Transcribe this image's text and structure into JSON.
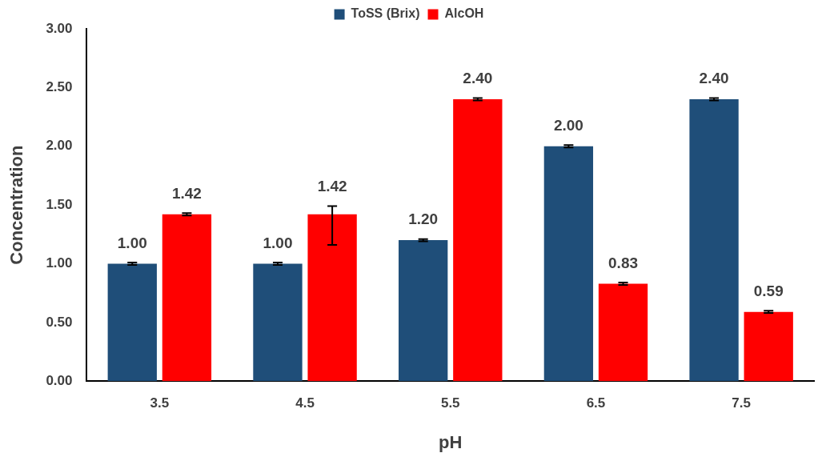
{
  "chart_data": {
    "type": "bar",
    "xlabel": "pH",
    "ylabel": "Concentration",
    "categories": [
      "3.5",
      "4.5",
      "5.5",
      "6.5",
      "7.5"
    ],
    "series": [
      {
        "name": "ToSS (Brix)",
        "color": "#1f4e79",
        "values": [
          1.0,
          1.0,
          1.2,
          2.0,
          2.4
        ],
        "value_labels": [
          "1.00",
          "1.00",
          "1.20",
          "2.00",
          "2.40"
        ],
        "errors": [
          0.01,
          0.01,
          0.01,
          0.01,
          0.01
        ]
      },
      {
        "name": "AlcOH",
        "color": "#ff0000",
        "values": [
          1.42,
          1.42,
          2.4,
          0.83,
          0.59
        ],
        "value_labels": [
          "1.42",
          "1.42",
          "2.40",
          "0.83",
          "0.59"
        ],
        "errors": [
          0.01,
          [
            1.16,
            1.49
          ],
          0.01,
          0.01,
          0.01
        ]
      }
    ],
    "ylim": [
      0,
      3
    ],
    "yticks": [
      {
        "value": 0,
        "label": "0.00"
      },
      {
        "value": 0.5,
        "label": "0.50"
      },
      {
        "value": 1,
        "label": "1.00"
      },
      {
        "value": 1.5,
        "label": "1.50"
      },
      {
        "value": 2,
        "label": "2.00"
      },
      {
        "value": 2.5,
        "label": "2.50"
      },
      {
        "value": 3,
        "label": "3.00"
      }
    ],
    "grid": false,
    "legend": "top"
  }
}
